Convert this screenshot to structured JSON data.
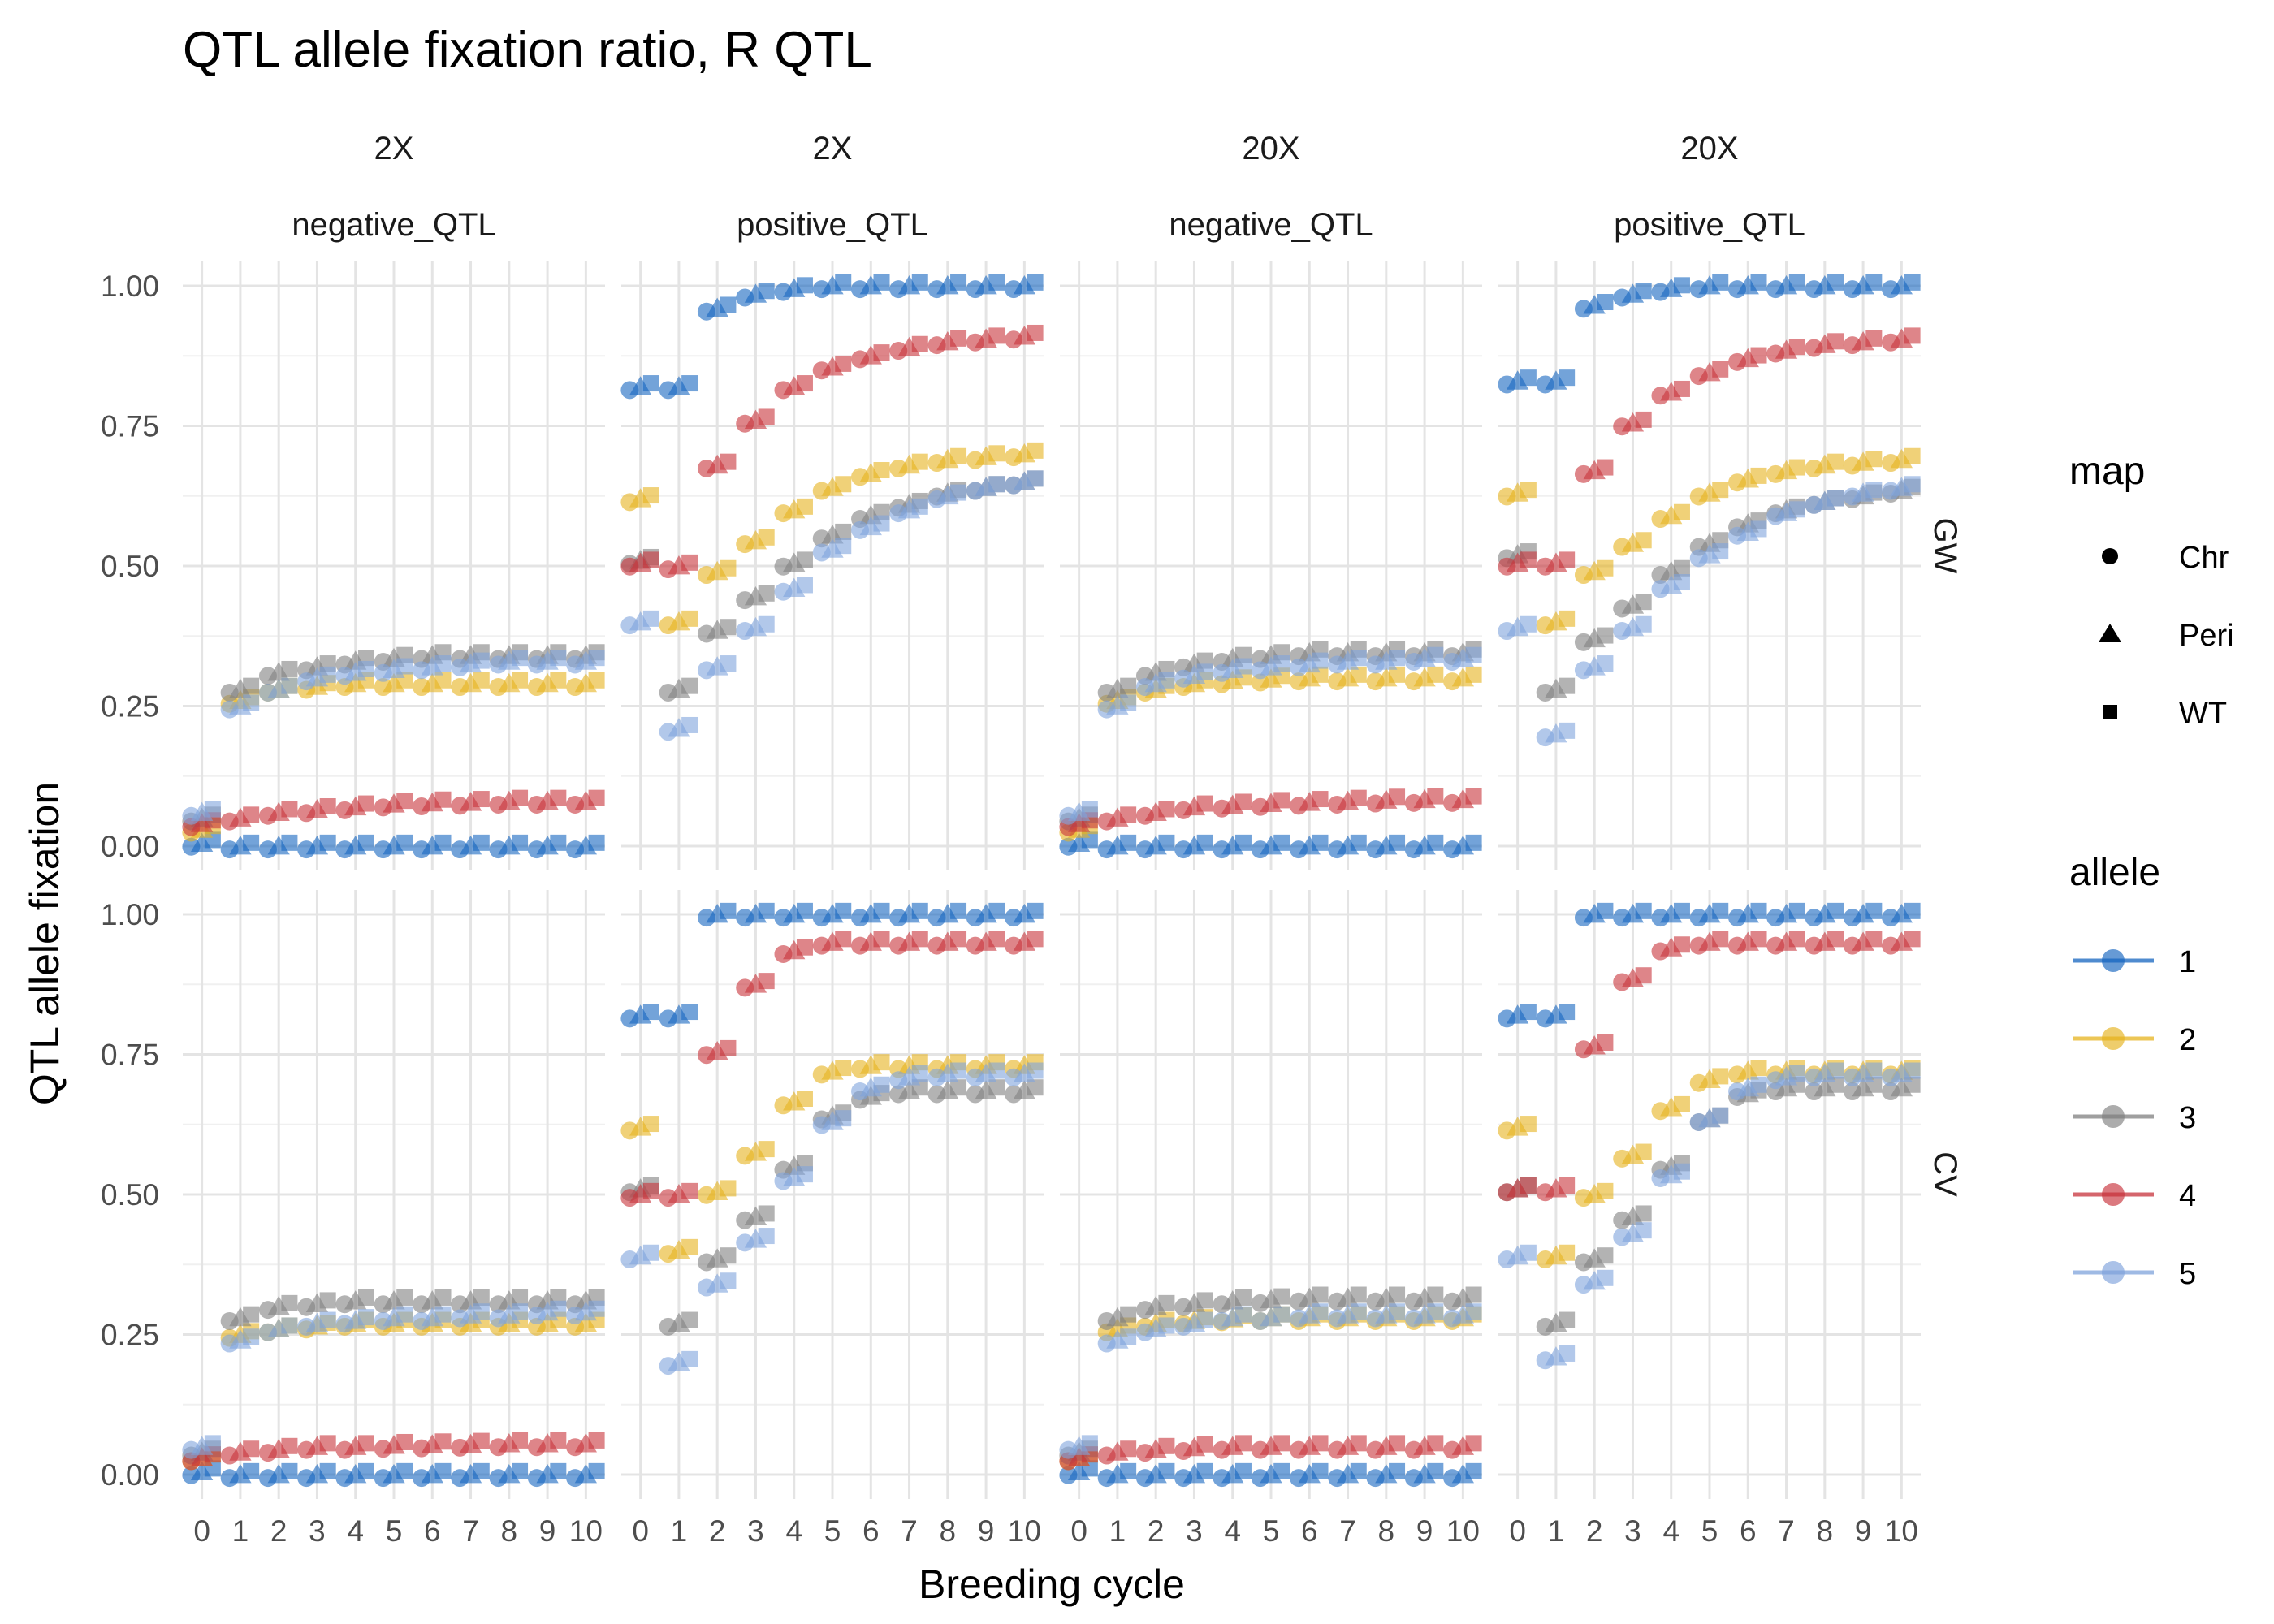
{
  "chart_data": {
    "type": "scatter",
    "title": "QTL allele fixation ratio, R QTL",
    "xlabel": "Breeding cycle",
    "ylabel": "QTL allele fixation",
    "xlim": [
      -0.5,
      10.5
    ],
    "ylim": [
      0,
      1
    ],
    "x_ticks": [
      "0",
      "1",
      "2",
      "3",
      "4",
      "5",
      "6",
      "7",
      "8",
      "9",
      "10"
    ],
    "y_ticks": [
      "0.00",
      "0.25",
      "0.50",
      "0.75",
      "1.00"
    ],
    "grid": true,
    "legend_position": "right",
    "col_strips": [
      {
        "top": "2X",
        "bottom": "negative_QTL"
      },
      {
        "top": "2X",
        "bottom": "positive_QTL"
      },
      {
        "top": "20X",
        "bottom": "negative_QTL"
      },
      {
        "top": "20X",
        "bottom": "positive_QTL"
      }
    ],
    "row_strips": [
      "GW",
      "CV"
    ],
    "legends": [
      {
        "title": "map",
        "entries": [
          {
            "label": "Chr",
            "shape": "circle"
          },
          {
            "label": "Peri",
            "shape": "triangle"
          },
          {
            "label": "WT",
            "shape": "square"
          }
        ]
      },
      {
        "title": "allele",
        "entries": [
          {
            "label": "1",
            "color": "#1565C0"
          },
          {
            "label": "2",
            "color": "#E6B31E"
          },
          {
            "label": "3",
            "color": "#808080"
          },
          {
            "label": "4",
            "color": "#C8333B"
          },
          {
            "label": "5",
            "color": "#7FA3DC"
          }
        ]
      }
    ],
    "x": [
      0,
      1,
      2,
      3,
      4,
      5,
      6,
      7,
      8,
      9,
      10
    ],
    "panels": [
      {
        "row": "GW",
        "col": 0,
        "series": [
          {
            "allele": "1",
            "values": [
              0.005,
              0,
              0,
              0,
              0,
              0,
              0,
              0,
              0,
              0,
              0
            ]
          },
          {
            "allele": "2",
            "values": [
              0.03,
              0.26,
              0.28,
              0.285,
              0.29,
              0.29,
              0.29,
              0.29,
              0.29,
              0.29,
              0.29
            ]
          },
          {
            "allele": "3",
            "values": [
              0.05,
              0.28,
              0.31,
              0.32,
              0.33,
              0.335,
              0.34,
              0.34,
              0.34,
              0.34,
              0.34
            ]
          },
          {
            "allele": "4",
            "values": [
              0.04,
              0.05,
              0.06,
              0.065,
              0.07,
              0.075,
              0.077,
              0.078,
              0.08,
              0.08,
              0.08
            ]
          },
          {
            "allele": "5",
            "values": [
              0.06,
              0.25,
              0.28,
              0.3,
              0.31,
              0.315,
              0.32,
              0.325,
              0.33,
              0.33,
              0.33
            ]
          }
        ]
      },
      {
        "row": "GW",
        "col": 1,
        "series": [
          {
            "allele": "1",
            "values": [
              0.82,
              0.82,
              0.96,
              0.985,
              0.995,
              1.0,
              1.0,
              1.0,
              1.0,
              1.0,
              1.0
            ]
          },
          {
            "allele": "2",
            "values": [
              0.62,
              0.4,
              0.49,
              0.545,
              0.6,
              0.64,
              0.665,
              0.68,
              0.69,
              0.695,
              0.7
            ]
          },
          {
            "allele": "3",
            "values": [
              0.51,
              0.28,
              0.385,
              0.445,
              0.505,
              0.555,
              0.59,
              0.61,
              0.63,
              0.64,
              0.65
            ]
          },
          {
            "allele": "4",
            "values": [
              0.505,
              0.5,
              0.68,
              0.76,
              0.82,
              0.855,
              0.875,
              0.89,
              0.9,
              0.905,
              0.91
            ]
          },
          {
            "allele": "5",
            "values": [
              0.4,
              0.21,
              0.32,
              0.39,
              0.46,
              0.53,
              0.57,
              0.6,
              0.625,
              0.64,
              0.65
            ]
          }
        ]
      },
      {
        "row": "GW",
        "col": 2,
        "series": [
          {
            "allele": "1",
            "values": [
              0.005,
              0,
              0,
              0,
              0,
              0,
              0,
              0,
              0,
              0,
              0
            ]
          },
          {
            "allele": "2",
            "values": [
              0.03,
              0.26,
              0.28,
              0.29,
              0.295,
              0.298,
              0.3,
              0.3,
              0.3,
              0.3,
              0.3
            ]
          },
          {
            "allele": "3",
            "values": [
              0.05,
              0.28,
              0.31,
              0.325,
              0.335,
              0.34,
              0.345,
              0.345,
              0.345,
              0.345,
              0.345
            ]
          },
          {
            "allele": "4",
            "values": [
              0.04,
              0.05,
              0.06,
              0.07,
              0.073,
              0.076,
              0.078,
              0.08,
              0.082,
              0.083,
              0.083
            ]
          },
          {
            "allele": "5",
            "values": [
              0.06,
              0.25,
              0.29,
              0.305,
              0.315,
              0.32,
              0.325,
              0.33,
              0.33,
              0.335,
              0.335
            ]
          }
        ]
      },
      {
        "row": "GW",
        "col": 3,
        "series": [
          {
            "allele": "1",
            "values": [
              0.83,
              0.83,
              0.965,
              0.985,
              0.995,
              1.0,
              1.0,
              1.0,
              1.0,
              1.0,
              1.0
            ]
          },
          {
            "allele": "2",
            "values": [
              0.63,
              0.4,
              0.49,
              0.54,
              0.59,
              0.63,
              0.655,
              0.67,
              0.68,
              0.685,
              0.69
            ]
          },
          {
            "allele": "3",
            "values": [
              0.52,
              0.28,
              0.37,
              0.43,
              0.49,
              0.54,
              0.575,
              0.6,
              0.615,
              0.625,
              0.635
            ]
          },
          {
            "allele": "4",
            "values": [
              0.505,
              0.505,
              0.67,
              0.755,
              0.81,
              0.845,
              0.87,
              0.885,
              0.895,
              0.9,
              0.905
            ]
          },
          {
            "allele": "5",
            "values": [
              0.39,
              0.2,
              0.32,
              0.39,
              0.465,
              0.52,
              0.56,
              0.595,
              0.615,
              0.63,
              0.64
            ]
          }
        ]
      },
      {
        "row": "CV",
        "col": 0,
        "series": [
          {
            "allele": "1",
            "values": [
              0.005,
              0,
              0,
              0,
              0,
              0,
              0,
              0,
              0,
              0,
              0
            ]
          },
          {
            "allele": "2",
            "values": [
              0.03,
              0.25,
              0.26,
              0.265,
              0.27,
              0.27,
              0.27,
              0.27,
              0.27,
              0.27,
              0.27
            ]
          },
          {
            "allele": "3",
            "values": [
              0.04,
              0.28,
              0.3,
              0.305,
              0.31,
              0.31,
              0.31,
              0.31,
              0.31,
              0.31,
              0.31
            ]
          },
          {
            "allele": "4",
            "values": [
              0.03,
              0.04,
              0.045,
              0.05,
              0.05,
              0.052,
              0.053,
              0.054,
              0.055,
              0.055,
              0.055
            ]
          },
          {
            "allele": "5",
            "values": [
              0.05,
              0.24,
              0.26,
              0.27,
              0.275,
              0.28,
              0.28,
              0.285,
              0.285,
              0.29,
              0.29
            ]
          }
        ]
      },
      {
        "row": "CV",
        "col": 1,
        "series": [
          {
            "allele": "1",
            "values": [
              0.82,
              0.82,
              1.0,
              1.0,
              1.0,
              1.0,
              1.0,
              1.0,
              1.0,
              1.0,
              1.0
            ]
          },
          {
            "allele": "2",
            "values": [
              0.62,
              0.4,
              0.505,
              0.575,
              0.665,
              0.72,
              0.73,
              0.73,
              0.73,
              0.73,
              0.73
            ]
          },
          {
            "allele": "3",
            "values": [
              0.51,
              0.27,
              0.385,
              0.46,
              0.55,
              0.64,
              0.675,
              0.685,
              0.685,
              0.685,
              0.685
            ]
          },
          {
            "allele": "4",
            "values": [
              0.5,
              0.5,
              0.755,
              0.875,
              0.935,
              0.95,
              0.95,
              0.95,
              0.95,
              0.95,
              0.95
            ]
          },
          {
            "allele": "5",
            "values": [
              0.39,
              0.2,
              0.34,
              0.42,
              0.53,
              0.63,
              0.69,
              0.71,
              0.715,
              0.715,
              0.715
            ]
          }
        ]
      },
      {
        "row": "CV",
        "col": 2,
        "series": [
          {
            "allele": "1",
            "values": [
              0.005,
              0,
              0,
              0,
              0,
              0,
              0,
              0,
              0,
              0,
              0
            ]
          },
          {
            "allele": "2",
            "values": [
              0.03,
              0.26,
              0.27,
              0.275,
              0.278,
              0.28,
              0.28,
              0.28,
              0.28,
              0.28,
              0.28
            ]
          },
          {
            "allele": "3",
            "values": [
              0.04,
              0.28,
              0.3,
              0.305,
              0.31,
              0.312,
              0.315,
              0.315,
              0.315,
              0.315,
              0.315
            ]
          },
          {
            "allele": "4",
            "values": [
              0.03,
              0.04,
              0.045,
              0.048,
              0.05,
              0.05,
              0.05,
              0.05,
              0.05,
              0.05,
              0.05
            ]
          },
          {
            "allele": "5",
            "values": [
              0.05,
              0.24,
              0.26,
              0.27,
              0.28,
              0.28,
              0.285,
              0.285,
              0.285,
              0.285,
              0.285
            ]
          }
        ]
      },
      {
        "row": "CV",
        "col": 3,
        "series": [
          {
            "allele": "1",
            "values": [
              0.82,
              0.82,
              1.0,
              1.0,
              1.0,
              1.0,
              1.0,
              1.0,
              1.0,
              1.0,
              1.0
            ]
          },
          {
            "allele": "2",
            "values": [
              0.62,
              0.39,
              0.5,
              0.57,
              0.655,
              0.705,
              0.72,
              0.72,
              0.72,
              0.72,
              0.72
            ]
          },
          {
            "allele": "3",
            "values": [
              0.51,
              0.27,
              0.385,
              0.46,
              0.55,
              0.635,
              0.68,
              0.69,
              0.69,
              0.69,
              0.69
            ]
          },
          {
            "allele": "4",
            "values": [
              0.51,
              0.51,
              0.765,
              0.885,
              0.94,
              0.95,
              0.95,
              0.95,
              0.95,
              0.95,
              0.95
            ]
          },
          {
            "allele": "5",
            "values": [
              0.39,
              0.21,
              0.345,
              0.43,
              0.535,
              0.635,
              0.69,
              0.71,
              0.715,
              0.715,
              0.715
            ]
          }
        ]
      }
    ]
  }
}
